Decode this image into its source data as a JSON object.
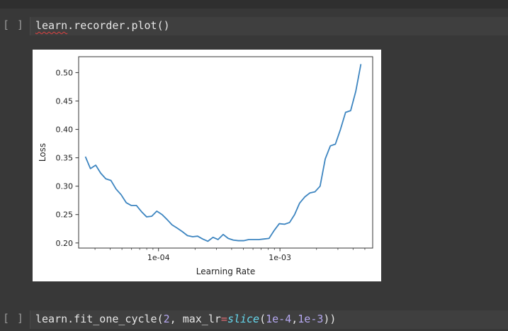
{
  "cells": [
    {
      "prompt": "[ ]",
      "code_parts": [
        {
          "text": "learn",
          "cls": "squiggle"
        },
        {
          "text": ".recorder.plot()",
          "cls": ""
        }
      ]
    },
    {
      "prompt": "[ ]",
      "code_parts": [
        {
          "text": "learn.fit_one_cycle(",
          "cls": ""
        },
        {
          "text": "2",
          "cls": "tok-num"
        },
        {
          "text": ", max_lr",
          "cls": ""
        },
        {
          "text": "=",
          "cls": "tok-op"
        },
        {
          "text": "slice",
          "cls": "tok-fn"
        },
        {
          "text": "(",
          "cls": ""
        },
        {
          "text": "1e-4",
          "cls": "tok-num"
        },
        {
          "text": ",",
          "cls": ""
        },
        {
          "text": "1e-3",
          "cls": "tok-num"
        },
        {
          "text": "))",
          "cls": ""
        }
      ]
    }
  ],
  "chart_data": {
    "type": "line",
    "xlabel": "Learning Rate",
    "ylabel": "Loss",
    "x_scale": "log",
    "xlim": [
      2.2e-05,
      0.0058
    ],
    "ylim": [
      0.191,
      0.528
    ],
    "xticks": [
      {
        "value": 0.0001,
        "label": "1e-04"
      },
      {
        "value": 0.001,
        "label": "1e-03"
      }
    ],
    "yticks": [
      {
        "value": 0.2,
        "label": "0.20"
      },
      {
        "value": 0.25,
        "label": "0.25"
      },
      {
        "value": 0.3,
        "label": "0.30"
      },
      {
        "value": 0.35,
        "label": "0.35"
      },
      {
        "value": 0.4,
        "label": "0.40"
      },
      {
        "value": 0.45,
        "label": "0.45"
      },
      {
        "value": 0.5,
        "label": "0.50"
      }
    ],
    "line_color": "#3d85c0",
    "series": [
      {
        "x": [
          2.5e-05,
          2.75e-05,
          3.04e-05,
          3.34e-05,
          3.68e-05,
          4.06e-05,
          4.47e-05,
          4.92e-05,
          5.42e-05,
          5.97e-05,
          6.58e-05,
          7.25e-05,
          7.98e-05,
          8.79e-05,
          9.68e-05,
          0.000107,
          0.000118,
          0.000129,
          0.000143,
          0.000157,
          0.000173,
          0.000191,
          0.00021,
          0.000231,
          0.000255,
          0.000281,
          0.000309,
          0.000341,
          0.000375,
          0.000413,
          0.000455,
          0.000502,
          0.000553,
          0.000609,
          0.00067,
          0.000738,
          0.000813,
          0.000896,
          0.000987,
          0.00109,
          0.0012,
          0.00132,
          0.00145,
          0.0016,
          0.00176,
          0.00194,
          0.00214,
          0.00236,
          0.0026,
          0.00286,
          0.00315,
          0.00347,
          0.00382,
          0.00421,
          0.00464
        ],
        "y": [
          0.352,
          0.331,
          0.337,
          0.323,
          0.313,
          0.31,
          0.295,
          0.285,
          0.271,
          0.266,
          0.266,
          0.255,
          0.246,
          0.247,
          0.256,
          0.25,
          0.241,
          0.232,
          0.226,
          0.22,
          0.213,
          0.211,
          0.212,
          0.207,
          0.203,
          0.21,
          0.206,
          0.215,
          0.208,
          0.205,
          0.204,
          0.204,
          0.206,
          0.206,
          0.206,
          0.207,
          0.208,
          0.222,
          0.234,
          0.233,
          0.236,
          0.25,
          0.27,
          0.281,
          0.288,
          0.29,
          0.3,
          0.348,
          0.371,
          0.374,
          0.4,
          0.43,
          0.433,
          0.467,
          0.515
        ]
      }
    ]
  }
}
